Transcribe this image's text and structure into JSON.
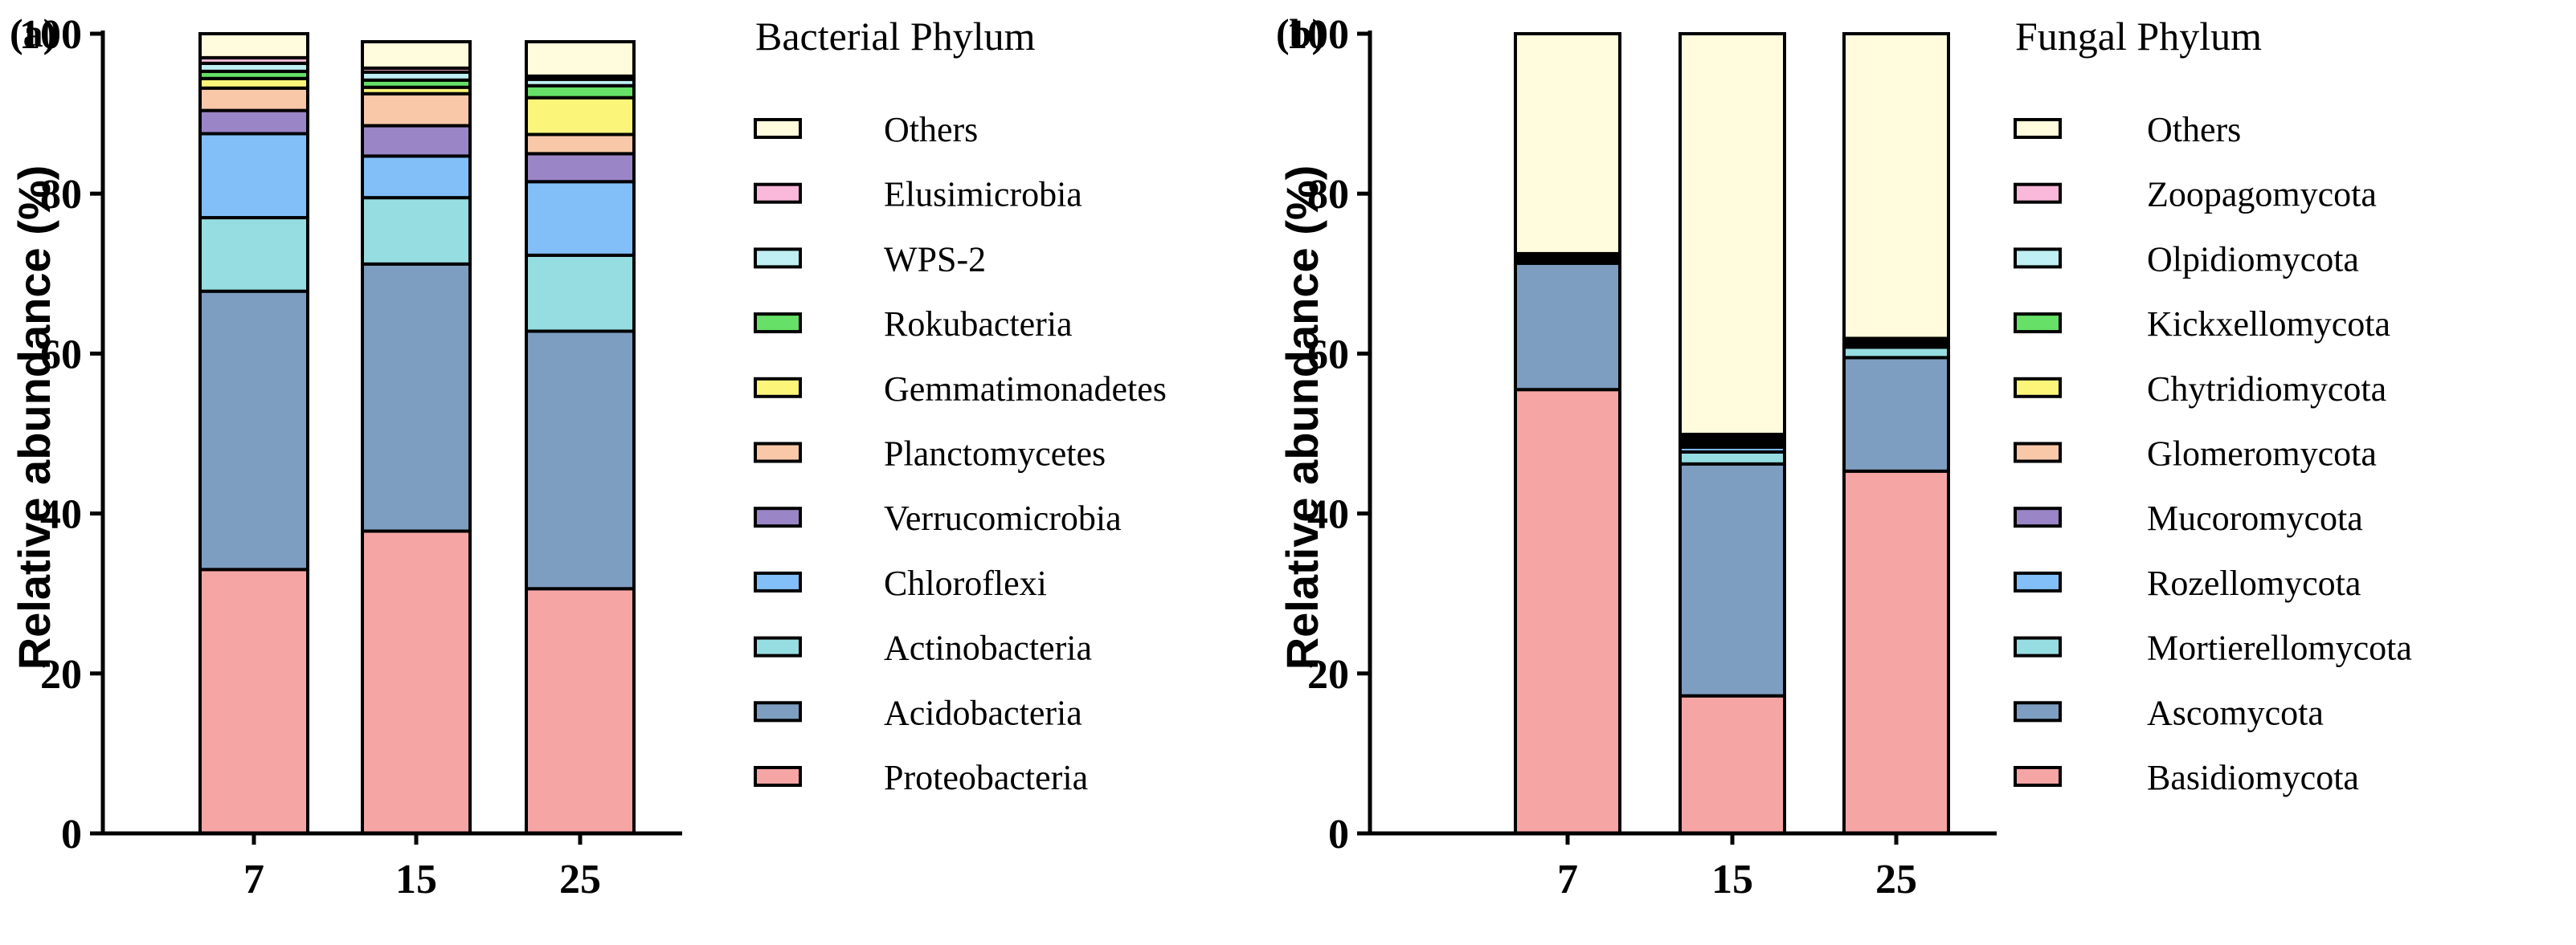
{
  "colors": {
    "Others": "#fffbdc",
    "Elusimicrobia": "#f9b8d9",
    "WPS-2": "#bfeff2",
    "Rokubacteria": "#66e066",
    "Gemmatimonadetes": "#fbf67a",
    "Planctomycetes": "#f8c8a8",
    "Verrucomicrobia": "#9a86c6",
    "Chloroflexi": "#82bff8",
    "Actinobacteria": "#96dde1",
    "Acidobacteria": "#7d9ec0",
    "Proteobacteria": "#f6a5a5",
    "Zoopagomycota": "#f9b8d9",
    "Olpidiomycota": "#bfeff2",
    "Kickxellomycota": "#66e066",
    "Chytridiomycota": "#fbf67a",
    "Glomeromycota": "#f8c8a8",
    "Mucoromycota": "#9a86c6",
    "Rozellomycota": "#82bff8",
    "Mortierellomycota": "#96dde1",
    "Ascomycota": "#7d9ec0",
    "Basidiomycota": "#f6a5a5"
  },
  "chart_data": [
    {
      "type": "bar",
      "stacked": true,
      "panel_label": "(a)",
      "categories": [
        "7",
        "15",
        "25"
      ],
      "xlabel": "",
      "ylabel": "Relative abundance (%)",
      "ylim": [
        0,
        100
      ],
      "yticks": [
        0,
        20,
        40,
        60,
        80,
        100
      ],
      "legend_title": "Bacterial Phylum",
      "legend_position": "right",
      "series": [
        {
          "name": "Proteobacteria",
          "values": [
            33.0,
            37.8,
            30.6
          ]
        },
        {
          "name": "Acidobacteria",
          "values": [
            34.8,
            33.4,
            32.2
          ]
        },
        {
          "name": "Actinobacteria",
          "values": [
            9.2,
            8.3,
            9.5
          ]
        },
        {
          "name": "Chloroflexi",
          "values": [
            10.5,
            5.2,
            9.2
          ]
        },
        {
          "name": "Verrucomicrobia",
          "values": [
            2.9,
            3.8,
            3.5
          ]
        },
        {
          "name": "Planctomycetes",
          "values": [
            2.8,
            4.0,
            2.4
          ]
        },
        {
          "name": "Gemmatimonadetes",
          "values": [
            1.2,
            0.8,
            4.6
          ]
        },
        {
          "name": "Rokubacteria",
          "values": [
            0.9,
            0.9,
            1.5
          ]
        },
        {
          "name": "WPS-2",
          "values": [
            1.0,
            1.0,
            0.8
          ]
        },
        {
          "name": "Elusimicrobia",
          "values": [
            0.7,
            0.5,
            0.4
          ]
        },
        {
          "name": "Others",
          "values": [
            3.0,
            3.3,
            4.3
          ]
        }
      ]
    },
    {
      "type": "bar",
      "stacked": true,
      "panel_label": "(b)",
      "categories": [
        "7",
        "15",
        "25"
      ],
      "xlabel": "",
      "ylabel": "Relative abundance (%)",
      "ylim": [
        0,
        100
      ],
      "yticks": [
        0,
        20,
        40,
        60,
        80,
        100
      ],
      "legend_title": "Fungal Phylum",
      "legend_position": "right",
      "series": [
        {
          "name": "Basidiomycota",
          "values": [
            55.5,
            17.2,
            45.3
          ]
        },
        {
          "name": "Ascomycota",
          "values": [
            15.8,
            29.0,
            14.2
          ]
        },
        {
          "name": "Mortierellomycota",
          "values": [
            0.3,
            1.5,
            1.3
          ]
        },
        {
          "name": "Rozellomycota",
          "values": [
            0.2,
            0.6,
            0.3
          ]
        },
        {
          "name": "Mucoromycota",
          "values": [
            0.2,
            0.4,
            0.2
          ]
        },
        {
          "name": "Glomeromycota",
          "values": [
            0.1,
            0.3,
            0.1
          ]
        },
        {
          "name": "Chytridiomycota",
          "values": [
            0.1,
            0.2,
            0.1
          ]
        },
        {
          "name": "Kickxellomycota",
          "values": [
            0.1,
            0.2,
            0.1
          ]
        },
        {
          "name": "Olpidiomycota",
          "values": [
            0.1,
            0.3,
            0.2
          ]
        },
        {
          "name": "Zoopagomycota",
          "values": [
            0.1,
            0.2,
            0.1
          ]
        },
        {
          "name": "Others",
          "values": [
            27.5,
            50.1,
            38.1
          ]
        }
      ]
    }
  ]
}
